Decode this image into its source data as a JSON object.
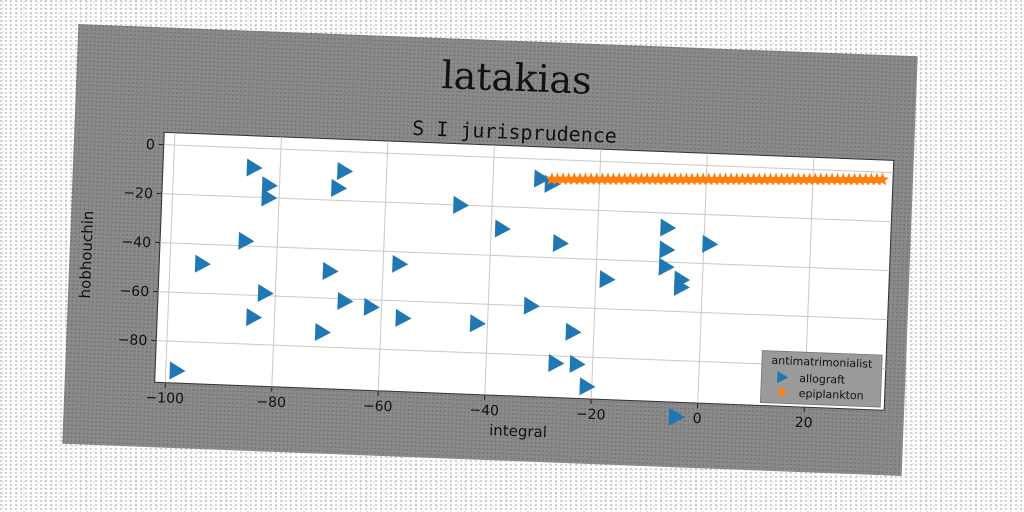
{
  "chart_data": {
    "type": "scatter",
    "title": "latakias",
    "subtitle": "S I jurisprudence",
    "xlabel": "integral",
    "ylabel": "hobhouchin",
    "xlim": [
      -102,
      35
    ],
    "ylim": [
      -97,
      5
    ],
    "x_ticks": [
      -100,
      -80,
      -60,
      -40,
      -20,
      0,
      20
    ],
    "y_ticks": [
      0,
      -20,
      -40,
      -60,
      -80
    ],
    "grid": true,
    "legend": {
      "title": "antimatrimonialist",
      "placement": "bottom-right"
    },
    "series": [
      {
        "name": "allograft",
        "marker": "triangle-right",
        "color": "#1f77b4",
        "points": [
          [
            -85,
            -8
          ],
          [
            -82,
            -15
          ],
          [
            -82,
            -20
          ],
          [
            -68,
            -8
          ],
          [
            -69,
            -15
          ],
          [
            -86,
            -38
          ],
          [
            -94,
            -48
          ],
          [
            -82,
            -59
          ],
          [
            -84,
            -69
          ],
          [
            -70,
            -49
          ],
          [
            -57,
            -45
          ],
          [
            -67,
            -61
          ],
          [
            -62,
            -63
          ],
          [
            -71,
            -74
          ],
          [
            -56,
            -67
          ],
          [
            -98,
            -92
          ],
          [
            -46,
            -20
          ],
          [
            -42,
            -68
          ],
          [
            -38,
            -29
          ],
          [
            -32,
            -60
          ],
          [
            -31,
            -8
          ],
          [
            -29,
            -10
          ],
          [
            -27,
            -34
          ],
          [
            -24,
            -70
          ],
          [
            -27,
            -83
          ],
          [
            -23,
            -83
          ],
          [
            -21,
            -92
          ],
          [
            -18,
            -48
          ],
          [
            -7,
            -26
          ],
          [
            -7,
            -35
          ],
          [
            -7,
            -42
          ],
          [
            -4,
            -47
          ],
          [
            -4,
            -50
          ],
          [
            1,
            -32
          ],
          [
            -4,
            -103
          ]
        ]
      },
      {
        "name": "epiplankton",
        "marker": "star",
        "color": "#ff7f0e",
        "x_range": [
          -29,
          33
        ],
        "y_range": [
          -8,
          -3
        ],
        "count": 60
      }
    ]
  }
}
